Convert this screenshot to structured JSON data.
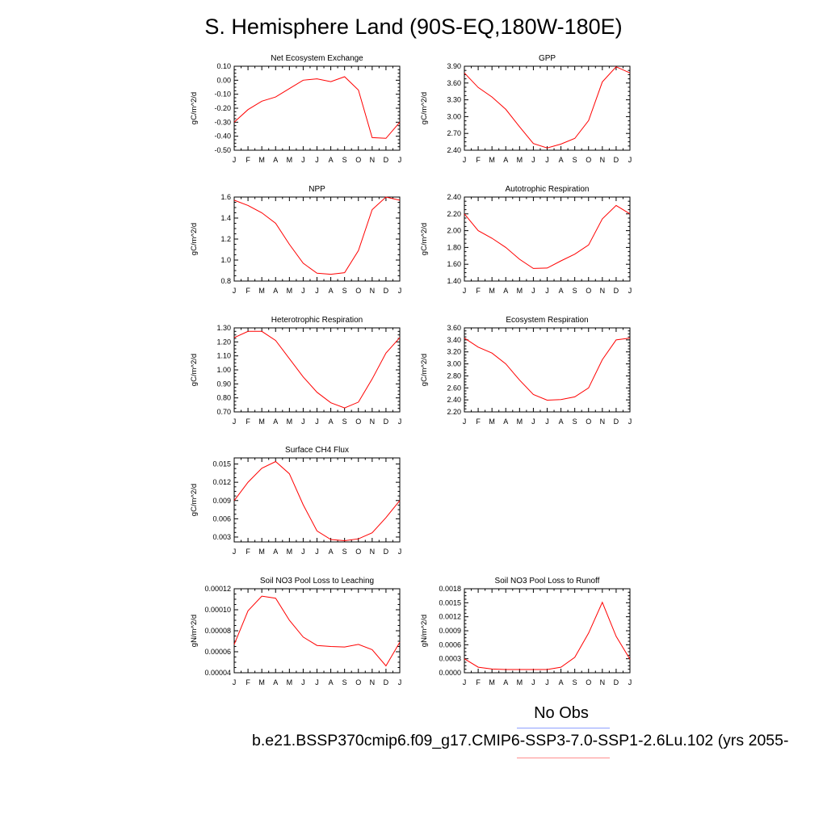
{
  "title": "S. Hemisphere Land (90S-EQ,180W-180E)",
  "legend": {
    "obs_label": "No Obs",
    "case_label": "b.e21.BSSP370cmip6.f09_g17.CMIP6-SSP3-7.0-SSP1-2.6Lu.102 (yrs 2055-"
  },
  "colors": {
    "model_line": "#ff0000",
    "obs_line": "#8ea0ff",
    "axis": "#000000"
  },
  "chart_data": [
    {
      "type": "line",
      "title": "Net Ecosystem Exchange",
      "ylabel": "gC/m^2/d",
      "x_ticks": [
        "J",
        "F",
        "M",
        "A",
        "M",
        "J",
        "J",
        "A",
        "S",
        "O",
        "N",
        "D",
        "J"
      ],
      "ylim": [
        -0.5,
        0.1
      ],
      "y_ticks": [
        0.1,
        0.0,
        -0.1,
        -0.2,
        -0.3,
        -0.4,
        -0.5
      ],
      "y_tick_labels": [
        "0.10",
        "0.00",
        "-0.10",
        "-0.20",
        "-0.30",
        "-0.40",
        "-0.50"
      ],
      "series": [
        {
          "values": [
            -0.3,
            -0.21,
            -0.15,
            -0.12,
            -0.06,
            0.0,
            0.01,
            -0.01,
            0.025,
            -0.07,
            -0.41,
            -0.415,
            -0.3
          ]
        }
      ]
    },
    {
      "type": "line",
      "title": "GPP",
      "ylabel": "gC/m^2/d",
      "x_ticks": [
        "J",
        "F",
        "M",
        "A",
        "M",
        "J",
        "J",
        "A",
        "S",
        "O",
        "N",
        "D",
        "J"
      ],
      "ylim": [
        2.4,
        3.9
      ],
      "y_ticks": [
        3.9,
        3.6,
        3.3,
        3.0,
        2.7,
        2.4
      ],
      "y_tick_labels": [
        "3.90",
        "3.60",
        "3.30",
        "3.00",
        "2.70",
        "2.40"
      ],
      "series": [
        {
          "values": [
            3.78,
            3.52,
            3.35,
            3.13,
            2.82,
            2.52,
            2.44,
            2.51,
            2.61,
            2.93,
            3.62,
            3.89,
            3.78
          ]
        }
      ]
    },
    {
      "type": "line",
      "title": "NPP",
      "ylabel": "gC/m^2/d",
      "x_ticks": [
        "J",
        "F",
        "M",
        "A",
        "M",
        "J",
        "J",
        "A",
        "S",
        "O",
        "N",
        "D",
        "J"
      ],
      "ylim": [
        0.8,
        1.6
      ],
      "y_ticks": [
        1.6,
        1.4,
        1.2,
        1.0,
        0.8
      ],
      "y_tick_labels": [
        "1.6",
        "1.4",
        "1.2",
        "1.0",
        "0.8"
      ],
      "series": [
        {
          "values": [
            1.57,
            1.52,
            1.45,
            1.35,
            1.15,
            0.97,
            0.875,
            0.865,
            0.88,
            1.09,
            1.48,
            1.6,
            1.57
          ]
        }
      ]
    },
    {
      "type": "line",
      "title": "Autotrophic Respiration",
      "ylabel": "gC/m^2/d",
      "x_ticks": [
        "J",
        "F",
        "M",
        "A",
        "M",
        "J",
        "J",
        "A",
        "S",
        "O",
        "N",
        "D",
        "J"
      ],
      "ylim": [
        1.4,
        2.4
      ],
      "y_ticks": [
        2.4,
        2.2,
        2.0,
        1.8,
        1.6,
        1.4
      ],
      "y_tick_labels": [
        "2.40",
        "2.20",
        "2.00",
        "1.80",
        "1.60",
        "1.40"
      ],
      "series": [
        {
          "values": [
            2.2,
            2.0,
            1.91,
            1.8,
            1.66,
            1.55,
            1.555,
            1.64,
            1.72,
            1.83,
            2.14,
            2.3,
            2.2
          ]
        }
      ]
    },
    {
      "type": "line",
      "title": "Heterotrophic Respiration",
      "ylabel": "gC/m^2/d",
      "x_ticks": [
        "J",
        "F",
        "M",
        "A",
        "M",
        "J",
        "J",
        "A",
        "S",
        "O",
        "N",
        "D",
        "J"
      ],
      "ylim": [
        0.7,
        1.3
      ],
      "y_ticks": [
        1.3,
        1.2,
        1.1,
        1.0,
        0.9,
        0.8,
        0.7
      ],
      "y_tick_labels": [
        "1.30",
        "1.20",
        "1.10",
        "1.00",
        "0.90",
        "0.80",
        "0.70"
      ],
      "series": [
        {
          "values": [
            1.23,
            1.275,
            1.275,
            1.21,
            1.08,
            0.95,
            0.84,
            0.765,
            0.728,
            0.77,
            0.935,
            1.12,
            1.23
          ]
        }
      ]
    },
    {
      "type": "line",
      "title": "Ecosystem Respiration",
      "ylabel": "gC/m^2/d",
      "x_ticks": [
        "J",
        "F",
        "M",
        "A",
        "M",
        "J",
        "J",
        "A",
        "S",
        "O",
        "N",
        "D",
        "J"
      ],
      "ylim": [
        2.2,
        3.6
      ],
      "y_ticks": [
        3.6,
        3.4,
        3.2,
        3.0,
        2.8,
        2.6,
        2.4,
        2.2
      ],
      "y_tick_labels": [
        "3.60",
        "3.40",
        "3.20",
        "3.00",
        "2.80",
        "2.60",
        "2.40",
        "2.20"
      ],
      "series": [
        {
          "values": [
            3.43,
            3.28,
            3.18,
            3.0,
            2.73,
            2.49,
            2.395,
            2.405,
            2.45,
            2.6,
            3.07,
            3.4,
            3.43
          ]
        }
      ]
    },
    {
      "type": "line",
      "title": "Surface CH4 Flux",
      "ylabel": "gC/m^2/d",
      "x_ticks": [
        "J",
        "F",
        "M",
        "A",
        "M",
        "J",
        "J",
        "A",
        "S",
        "O",
        "N",
        "D",
        "J"
      ],
      "ylim": [
        0.0022,
        0.016
      ],
      "y_ticks": [
        0.015,
        0.012,
        0.009,
        0.006,
        0.003
      ],
      "y_tick_labels": [
        "0.015",
        "0.012",
        "0.009",
        "0.006",
        "0.003"
      ],
      "series": [
        {
          "values": [
            0.009,
            0.012,
            0.0143,
            0.0154,
            0.0134,
            0.0083,
            0.004,
            0.0026,
            0.0024,
            0.0027,
            0.0037,
            0.0062,
            0.009
          ]
        }
      ]
    },
    {
      "type": "line",
      "title": "Soil NO3 Pool Loss to Leaching",
      "ylabel": "gN/m^2/d",
      "x_ticks": [
        "J",
        "F",
        "M",
        "A",
        "M",
        "J",
        "J",
        "A",
        "S",
        "O",
        "N",
        "D",
        "J"
      ],
      "ylim": [
        4e-05,
        0.00012
      ],
      "y_ticks": [
        0.00012,
        0.0001,
        8e-05,
        6e-05,
        4e-05
      ],
      "y_tick_labels": [
        "0.00012",
        "0.00010",
        "0.00008",
        "0.00006",
        "0.00004"
      ],
      "series": [
        {
          "values": [
            6.7e-05,
            9.9e-05,
            0.000113,
            0.000111,
            9e-05,
            7.4e-05,
            6.6e-05,
            6.5e-05,
            6.45e-05,
            6.7e-05,
            6.2e-05,
            4.65e-05,
            6.9e-05
          ]
        }
      ]
    },
    {
      "type": "line",
      "title": "Soil NO3 Pool Loss to Runoff",
      "ylabel": "gN/m^2/d",
      "x_ticks": [
        "J",
        "F",
        "M",
        "A",
        "M",
        "J",
        "J",
        "A",
        "S",
        "O",
        "N",
        "D",
        "J"
      ],
      "ylim": [
        0,
        0.0018
      ],
      "y_ticks": [
        0.0018,
        0.0015,
        0.0012,
        0.0009,
        0.0006,
        0.0003,
        0.0
      ],
      "y_tick_labels": [
        "0.0018",
        "0.0015",
        "0.0012",
        "0.0009",
        "0.0006",
        "0.0003",
        "0.0000"
      ],
      "series": [
        {
          "values": [
            0.0003,
            0.00012,
            8e-05,
            7e-05,
            7e-05,
            7e-05,
            7e-05,
            0.00012,
            0.00033,
            0.00085,
            0.00151,
            0.00078,
            0.00029
          ]
        }
      ]
    }
  ]
}
